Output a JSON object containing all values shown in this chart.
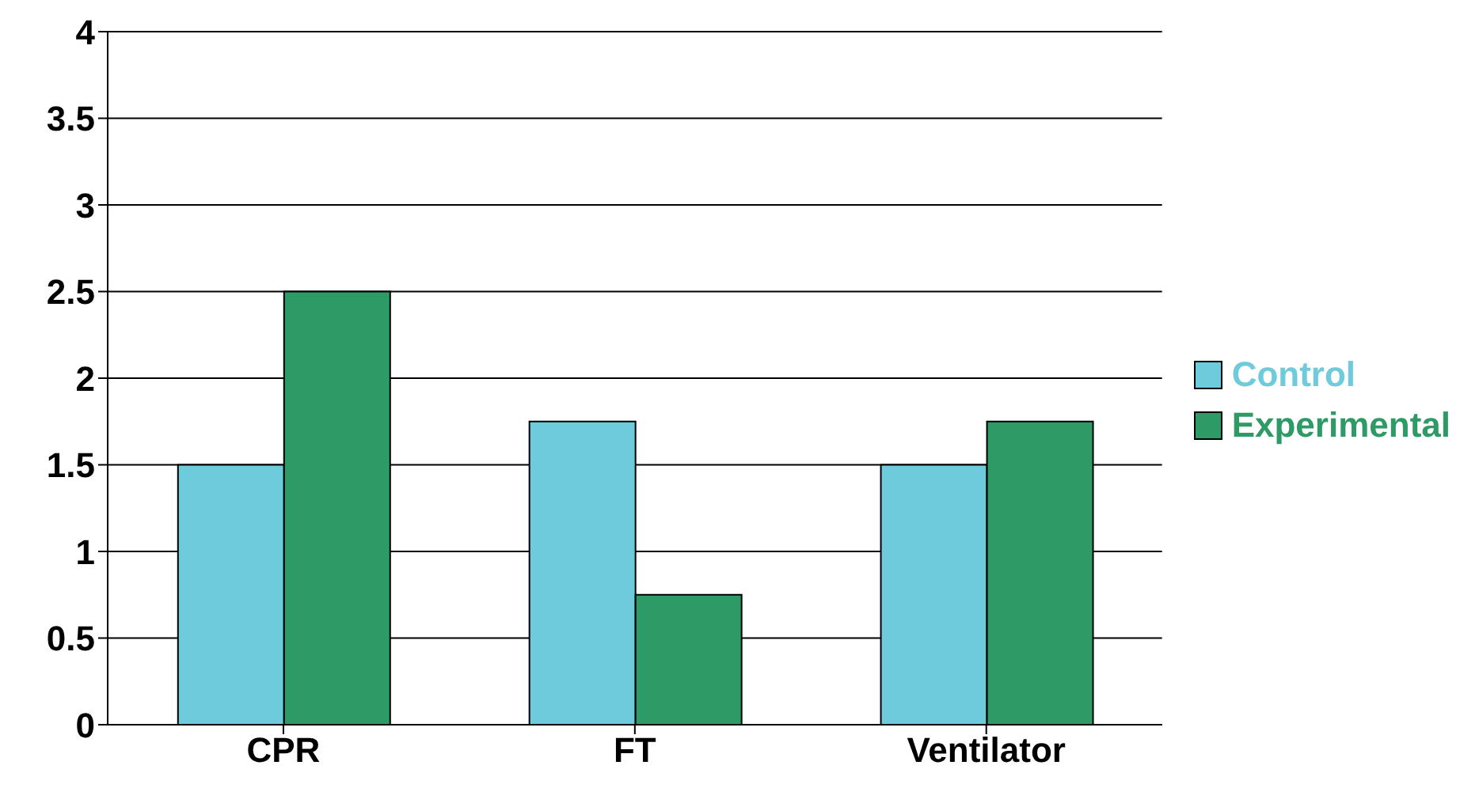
{
  "chart_data": {
    "type": "bar",
    "categories": [
      "CPR",
      "FT",
      "Ventilator"
    ],
    "series": [
      {
        "name": "Control",
        "color": "#6dcbdb",
        "values": [
          1.5,
          1.75,
          1.5
        ]
      },
      {
        "name": "Experimental",
        "color": "#2e9a66",
        "values": [
          2.5,
          0.75,
          1.75
        ]
      }
    ],
    "ylim": [
      0,
      4
    ],
    "yticks": [
      0,
      0.5,
      1,
      1.5,
      2,
      2.5,
      3,
      3.5,
      4
    ],
    "grid": "y",
    "legend": "right"
  }
}
